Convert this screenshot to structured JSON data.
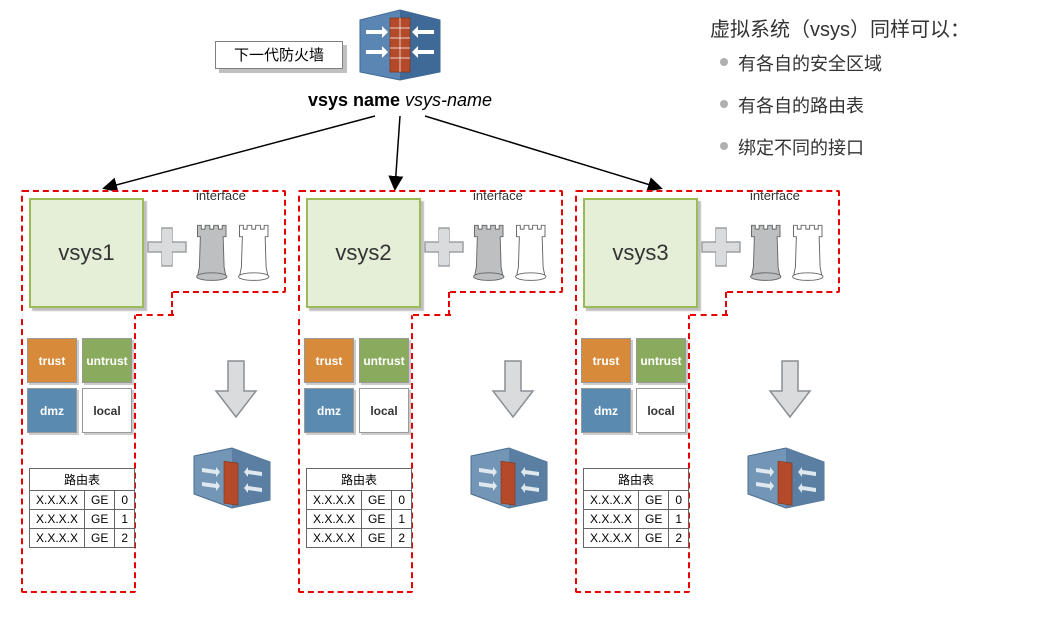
{
  "firewall_label": "下一代防火墙",
  "vsys_command": {
    "cmd": "vsys name",
    "arg": "vsys-name"
  },
  "info": {
    "title": "虚拟系统（vsys）同样可以：",
    "items": [
      "有各自的安全区域",
      "有各自的路由表",
      "绑定不同的接口"
    ]
  },
  "interface_label": "interface",
  "zones": {
    "trust": "trust",
    "untrust": "untrust",
    "dmz": "dmz",
    "local": "local"
  },
  "route_table": {
    "header": "路由表",
    "rows": [
      [
        "X.X.X.X",
        "GE",
        "0"
      ],
      [
        "X.X.X.X",
        "GE",
        "1"
      ],
      [
        "X.X.X.X",
        "GE",
        "2"
      ]
    ]
  },
  "vsys_instances": [
    {
      "name": "vsys1"
    },
    {
      "name": "vsys2"
    },
    {
      "name": "vsys3"
    }
  ],
  "colors": {
    "dashed_border": "#e60000",
    "vsys_fill": "#e5efd7",
    "vsys_border": "#9bbb59",
    "trust": "#d68a3a",
    "untrust": "#8aab5e",
    "dmz": "#5a8ab0",
    "local": "#ffffff",
    "fw_blue1": "#5b85b2",
    "fw_blue2": "#3f6a97",
    "brick": "#b44a2a",
    "arrow_grey": "#c8cbce",
    "arrow_stroke": "#8a8f94"
  }
}
